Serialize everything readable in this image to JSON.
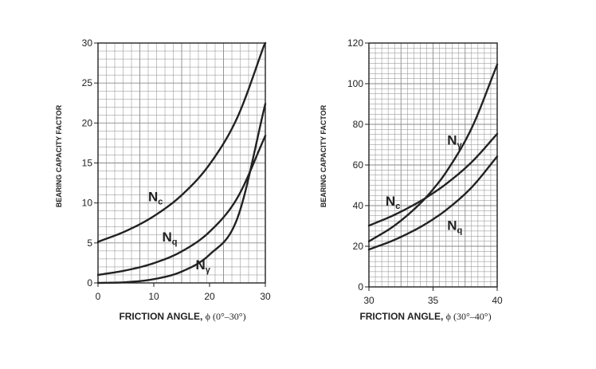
{
  "chart_data": [
    {
      "type": "line",
      "title": "",
      "xlabel": "FRICTION ANGLE, ",
      "xlabel_symbol": "ϕ (0°–30°)",
      "ylabel": "BEARING CAPACITY FACTOR",
      "xlim": [
        0,
        30
      ],
      "ylim": [
        0,
        30
      ],
      "x_ticks": [
        "0",
        "10",
        "20",
        "30"
      ],
      "y_ticks": [
        "0",
        "5",
        "10",
        "15",
        "20",
        "25",
        "30"
      ],
      "grid": true,
      "series": [
        {
          "name": "Nc",
          "label_main": "N",
          "label_sub": "c",
          "label_at": [
            9,
            10.2
          ],
          "x": [
            0,
            5,
            10,
            15,
            20,
            25,
            30
          ],
          "values": [
            5.14,
            6.49,
            8.35,
            10.98,
            14.83,
            20.72,
            30.14
          ]
        },
        {
          "name": "Nq",
          "label_main": "N",
          "label_sub": "q",
          "label_at": [
            11.5,
            5.2
          ],
          "x": [
            0,
            5,
            10,
            15,
            20,
            25,
            30
          ],
          "values": [
            1.0,
            1.57,
            2.47,
            3.94,
            6.4,
            10.66,
            18.4
          ]
        },
        {
          "name": "Nγ",
          "label_main": "N",
          "label_sub": "γ",
          "label_at": [
            17.5,
            1.7
          ],
          "x": [
            0,
            5,
            10,
            15,
            20,
            25,
            30
          ],
          "values": [
            0.0,
            0.09,
            0.47,
            1.42,
            3.54,
            8.11,
            22.4
          ]
        }
      ]
    },
    {
      "type": "line",
      "title": "",
      "xlabel": "FRICTION ANGLE, ",
      "xlabel_symbol": "ϕ (30°–40°)",
      "ylabel": "BEARING CAPACITY FACTOR",
      "xlim": [
        30,
        40
      ],
      "ylim": [
        0,
        120
      ],
      "x_ticks": [
        "30",
        "35",
        "40"
      ],
      "y_ticks": [
        "0",
        "20",
        "40",
        "60",
        "80",
        "100",
        "120"
      ],
      "grid": true,
      "series": [
        {
          "name": "Nc",
          "label_main": "N",
          "label_sub": "c",
          "label_at": [
            31.3,
            40
          ],
          "x": [
            30,
            32,
            34,
            35,
            36,
            38,
            40
          ],
          "values": [
            30.14,
            35.49,
            42.16,
            46.12,
            50.59,
            61.35,
            75.31
          ]
        },
        {
          "name": "Nq",
          "label_main": "N",
          "label_sub": "q",
          "label_at": [
            36.1,
            28
          ],
          "x": [
            30,
            32,
            34,
            35,
            36,
            38,
            40
          ],
          "values": [
            18.4,
            23.18,
            29.44,
            33.3,
            37.75,
            48.93,
            64.2
          ]
        },
        {
          "name": "Nγ",
          "label_main": "N",
          "label_sub": "γ",
          "label_at": [
            36.1,
            70
          ],
          "x": [
            30,
            32,
            34,
            35,
            36,
            38,
            40
          ],
          "values": [
            22.4,
            30.22,
            41.06,
            48.03,
            56.31,
            78.03,
            109.41
          ]
        }
      ]
    }
  ]
}
